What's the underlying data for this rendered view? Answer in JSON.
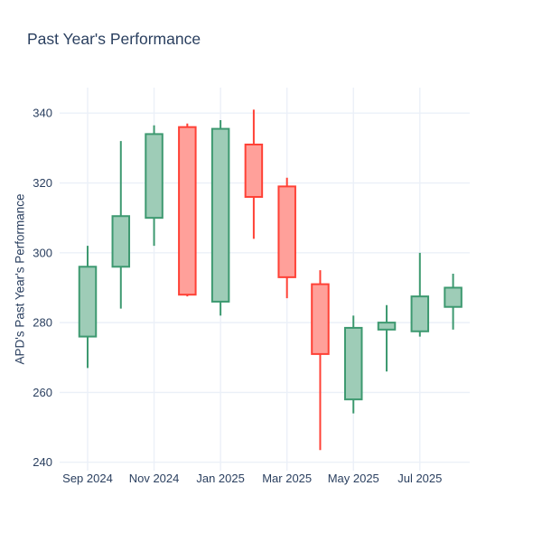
{
  "title": "Past Year's Performance",
  "colors": {
    "background": "#ffffff",
    "text": "#2a3f5f",
    "grid": "#ebf0f8",
    "increasing_line": "#3d9970",
    "increasing_fill": "#9eccb7",
    "decreasing_line": "#ff4136",
    "decreasing_fill": "#ffa09a"
  },
  "chart_data": {
    "type": "candlestick",
    "title": "Past Year's Performance",
    "xlabel": "",
    "ylabel": "APD's Past Year's Performance",
    "grid": true,
    "legend": "none",
    "y_ticks": [
      240,
      260,
      280,
      300,
      320,
      340
    ],
    "ylim": [
      237.6,
      347.3
    ],
    "x_tick_labels": [
      "Sep 2024",
      "Nov 2024",
      "Jan 2025",
      "Mar 2025",
      "May 2025",
      "Jul 2025"
    ],
    "categories": [
      "Sep 2024",
      "Oct 2024",
      "Nov 2024",
      "Dec 2024",
      "Jan 2025",
      "Feb 2025",
      "Mar 2025",
      "Apr 2025",
      "May 2025",
      "Jun 2025",
      "Jul 2025",
      "Aug 2025"
    ],
    "series": [
      {
        "month": "Sep 2024",
        "open": 276,
        "high": 302,
        "low": 267,
        "close": 296
      },
      {
        "month": "Oct 2024",
        "open": 296,
        "high": 332,
        "low": 284,
        "close": 310.5
      },
      {
        "month": "Nov 2024",
        "open": 310,
        "high": 336.5,
        "low": 302,
        "close": 334
      },
      {
        "month": "Dec 2024",
        "open": 336,
        "high": 337,
        "low": 287.5,
        "close": 288
      },
      {
        "month": "Jan 2025",
        "open": 286,
        "high": 338,
        "low": 282,
        "close": 335.5
      },
      {
        "month": "Feb 2025",
        "open": 331,
        "high": 341,
        "low": 304,
        "close": 316
      },
      {
        "month": "Mar 2025",
        "open": 319,
        "high": 321.5,
        "low": 287,
        "close": 293
      },
      {
        "month": "Apr 2025",
        "open": 291,
        "high": 295,
        "low": 243.5,
        "close": 271
      },
      {
        "month": "May 2025",
        "open": 258,
        "high": 282,
        "low": 254,
        "close": 278.5
      },
      {
        "month": "Jun 2025",
        "open": 278,
        "high": 285,
        "low": 266,
        "close": 280
      },
      {
        "month": "Jul 2025",
        "open": 277.5,
        "high": 300,
        "low": 276,
        "close": 287.5
      },
      {
        "month": "Aug 2025",
        "open": 284.5,
        "high": 294,
        "low": 278,
        "close": 290
      }
    ]
  }
}
